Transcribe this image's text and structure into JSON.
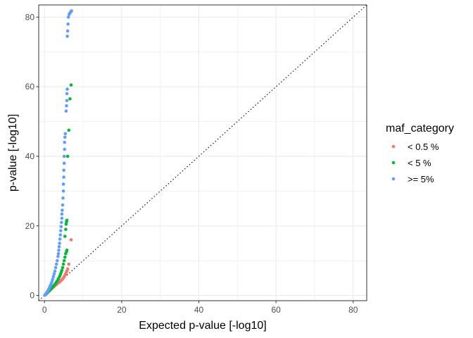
{
  "chart_data": {
    "type": "scatter",
    "title": "",
    "xlabel": "Expected p-value [-log10]",
    "ylabel": "p-value [-log10]",
    "xlim": [
      -1.5,
      83.5
    ],
    "ylim": [
      -1.5,
      83.5
    ],
    "x_ticks": [
      0,
      20,
      40,
      60,
      80
    ],
    "y_ticks": [
      0,
      20,
      40,
      60,
      80
    ],
    "x_tick_labels": [
      "0",
      "20",
      "40",
      "60",
      "80"
    ],
    "y_tick_labels": [
      "0",
      "20",
      "40",
      "60",
      "80"
    ],
    "grid": true,
    "reference_line": "y = x (dotted)",
    "legend": {
      "title": "maf_category",
      "placement": "right",
      "entries": [
        "< 0.5 %",
        "< 5 %",
        ">= 5%"
      ]
    },
    "series": [
      {
        "name": "< 0.5 %",
        "color": "#F8766D",
        "points": [
          [
            0.2,
            0.2
          ],
          [
            0.5,
            0.5
          ],
          [
            0.8,
            0.8
          ],
          [
            1.0,
            1.1
          ],
          [
            1.3,
            1.4
          ],
          [
            1.5,
            1.6
          ],
          [
            1.8,
            1.9
          ],
          [
            2.0,
            2.1
          ],
          [
            2.3,
            2.4
          ],
          [
            2.5,
            2.6
          ],
          [
            2.8,
            2.9
          ],
          [
            3.0,
            3.1
          ],
          [
            3.2,
            3.3
          ],
          [
            3.4,
            3.5
          ],
          [
            3.6,
            3.6
          ],
          [
            3.8,
            3.8
          ],
          [
            4.0,
            4.0
          ],
          [
            4.2,
            4.2
          ],
          [
            4.4,
            4.4
          ],
          [
            4.6,
            4.6
          ],
          [
            4.8,
            4.9
          ],
          [
            5.0,
            5.2
          ],
          [
            5.2,
            5.6
          ],
          [
            5.4,
            6.0
          ],
          [
            5.6,
            6.5
          ],
          [
            5.8,
            7.0
          ],
          [
            6.0,
            7.6
          ],
          [
            6.3,
            9.0
          ],
          [
            6.9,
            16.0
          ]
        ]
      },
      {
        "name": "< 5 %",
        "color": "#00BA38",
        "points": [
          [
            0.3,
            0.3
          ],
          [
            0.6,
            0.6
          ],
          [
            0.9,
            1.0
          ],
          [
            1.2,
            1.3
          ],
          [
            1.5,
            1.6
          ],
          [
            1.8,
            2.0
          ],
          [
            2.1,
            2.4
          ],
          [
            2.4,
            2.8
          ],
          [
            2.7,
            3.2
          ],
          [
            3.0,
            3.7
          ],
          [
            3.3,
            4.2
          ],
          [
            3.6,
            4.8
          ],
          [
            3.9,
            5.4
          ],
          [
            4.1,
            6.0
          ],
          [
            4.3,
            6.6
          ],
          [
            4.5,
            7.2
          ],
          [
            4.7,
            8.0
          ],
          [
            4.9,
            9.0
          ],
          [
            5.1,
            10.0
          ],
          [
            5.3,
            11.0
          ],
          [
            5.5,
            12.0
          ],
          [
            5.7,
            12.6
          ],
          [
            5.8,
            13.0
          ],
          [
            5.3,
            17.0
          ],
          [
            5.5,
            19.0
          ],
          [
            5.6,
            20.5
          ],
          [
            5.7,
            21.2
          ],
          [
            5.8,
            21.6
          ],
          [
            6.0,
            40.0
          ],
          [
            6.3,
            47.5
          ],
          [
            6.6,
            56.5
          ],
          [
            6.9,
            60.5
          ]
        ]
      },
      {
        "name": ">= 5%",
        "color": "#619CFF",
        "points": [
          [
            0.1,
            0.1
          ],
          [
            0.3,
            0.4
          ],
          [
            0.5,
            0.7
          ],
          [
            0.7,
            1.0
          ],
          [
            0.9,
            1.4
          ],
          [
            1.1,
            1.8
          ],
          [
            1.3,
            2.3
          ],
          [
            1.5,
            2.8
          ],
          [
            1.7,
            3.3
          ],
          [
            1.9,
            3.9
          ],
          [
            2.1,
            4.6
          ],
          [
            2.3,
            5.4
          ],
          [
            2.5,
            6.2
          ],
          [
            2.7,
            7.0
          ],
          [
            2.9,
            8.0
          ],
          [
            3.1,
            9.0
          ],
          [
            3.3,
            10.0
          ],
          [
            3.5,
            11.2
          ],
          [
            3.6,
            12.0
          ],
          [
            3.7,
            13.0
          ],
          [
            3.8,
            14.0
          ],
          [
            3.9,
            15.0
          ],
          [
            4.0,
            16.2
          ],
          [
            4.1,
            17.4
          ],
          [
            4.2,
            18.6
          ],
          [
            4.3,
            19.8
          ],
          [
            4.4,
            21.0
          ],
          [
            4.5,
            22.2
          ],
          [
            4.5,
            23.4
          ],
          [
            4.6,
            24.5
          ],
          [
            4.7,
            26.0
          ],
          [
            4.8,
            28.0
          ],
          [
            4.9,
            30.0
          ],
          [
            4.9,
            32.0
          ],
          [
            5.0,
            34.0
          ],
          [
            5.0,
            36.0
          ],
          [
            5.1,
            38.0
          ],
          [
            5.1,
            40.0
          ],
          [
            5.2,
            42.0
          ],
          [
            5.2,
            44.0
          ],
          [
            5.3,
            45.5
          ],
          [
            5.4,
            46.5
          ],
          [
            5.6,
            53.0
          ],
          [
            5.7,
            54.5
          ],
          [
            5.8,
            56.0
          ],
          [
            5.8,
            58.0
          ],
          [
            5.9,
            59.3
          ],
          [
            5.9,
            74.5
          ],
          [
            6.0,
            76.0
          ],
          [
            6.1,
            78.0
          ],
          [
            6.2,
            80.0
          ],
          [
            6.4,
            80.8
          ],
          [
            6.6,
            81.2
          ],
          [
            6.8,
            81.5
          ],
          [
            7.0,
            81.8
          ]
        ]
      }
    ]
  }
}
